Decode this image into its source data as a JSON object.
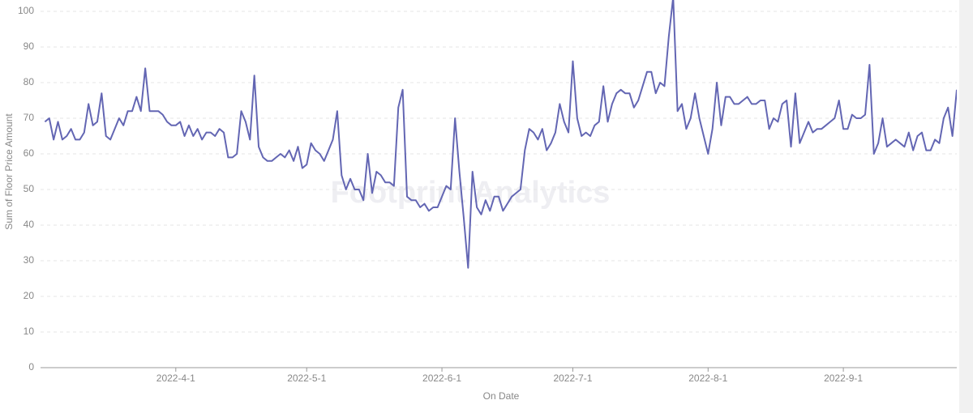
{
  "chart_data": {
    "type": "line",
    "watermark": "Footprint Analytics",
    "x_label": "On Date",
    "y_label": "Sum of Floor Price Amount",
    "x": [
      "2022-03-02",
      "2022-03-03",
      "2022-03-04",
      "2022-03-05",
      "2022-03-06",
      "2022-03-07",
      "2022-03-08",
      "2022-03-09",
      "2022-03-10",
      "2022-03-11",
      "2022-03-12",
      "2022-03-13",
      "2022-03-14",
      "2022-03-15",
      "2022-03-16",
      "2022-03-17",
      "2022-03-18",
      "2022-03-19",
      "2022-03-20",
      "2022-03-21",
      "2022-03-22",
      "2022-03-23",
      "2022-03-24",
      "2022-03-25",
      "2022-03-26",
      "2022-03-27",
      "2022-03-28",
      "2022-03-29",
      "2022-03-30",
      "2022-03-31",
      "2022-04-01",
      "2022-04-02",
      "2022-04-03",
      "2022-04-04",
      "2022-04-05",
      "2022-04-06",
      "2022-04-07",
      "2022-04-08",
      "2022-04-09",
      "2022-04-10",
      "2022-04-11",
      "2022-04-12",
      "2022-04-13",
      "2022-04-14",
      "2022-04-15",
      "2022-04-16",
      "2022-04-17",
      "2022-04-18",
      "2022-04-19",
      "2022-04-20",
      "2022-04-21",
      "2022-04-22",
      "2022-04-23",
      "2022-04-24",
      "2022-04-25",
      "2022-04-26",
      "2022-04-27",
      "2022-04-28",
      "2022-04-29",
      "2022-04-30",
      "2022-05-01",
      "2022-05-02",
      "2022-05-03",
      "2022-05-04",
      "2022-05-05",
      "2022-05-06",
      "2022-05-07",
      "2022-05-08",
      "2022-05-09",
      "2022-05-10",
      "2022-05-11",
      "2022-05-12",
      "2022-05-13",
      "2022-05-14",
      "2022-05-15",
      "2022-05-16",
      "2022-05-17",
      "2022-05-18",
      "2022-05-19",
      "2022-05-20",
      "2022-05-21",
      "2022-05-22",
      "2022-05-23",
      "2022-05-24",
      "2022-05-25",
      "2022-05-26",
      "2022-05-27",
      "2022-05-28",
      "2022-05-29",
      "2022-05-30",
      "2022-05-31",
      "2022-06-01",
      "2022-06-02",
      "2022-06-03",
      "2022-06-04",
      "2022-06-05",
      "2022-06-06",
      "2022-06-07",
      "2022-06-08",
      "2022-06-09",
      "2022-06-10",
      "2022-06-11",
      "2022-06-12",
      "2022-06-13",
      "2022-06-14",
      "2022-06-15",
      "2022-06-16",
      "2022-06-17",
      "2022-06-18",
      "2022-06-19",
      "2022-06-20",
      "2022-06-21",
      "2022-06-22",
      "2022-06-23",
      "2022-06-24",
      "2022-06-25",
      "2022-06-26",
      "2022-06-27",
      "2022-06-28",
      "2022-06-29",
      "2022-06-30",
      "2022-07-01",
      "2022-07-02",
      "2022-07-03",
      "2022-07-04",
      "2022-07-05",
      "2022-07-06",
      "2022-07-07",
      "2022-07-08",
      "2022-07-09",
      "2022-07-10",
      "2022-07-11",
      "2022-07-12",
      "2022-07-13",
      "2022-07-14",
      "2022-07-15",
      "2022-07-16",
      "2022-07-17",
      "2022-07-18",
      "2022-07-19",
      "2022-07-20",
      "2022-07-21",
      "2022-07-22",
      "2022-07-23",
      "2022-07-24",
      "2022-07-25",
      "2022-07-26",
      "2022-07-27",
      "2022-07-28",
      "2022-07-29",
      "2022-07-30",
      "2022-07-31",
      "2022-08-01",
      "2022-08-02",
      "2022-08-03",
      "2022-08-04",
      "2022-08-05",
      "2022-08-06",
      "2022-08-07",
      "2022-08-08",
      "2022-08-09",
      "2022-08-10",
      "2022-08-11",
      "2022-08-12",
      "2022-08-13",
      "2022-08-14",
      "2022-08-15",
      "2022-08-16",
      "2022-08-17",
      "2022-08-18",
      "2022-08-19",
      "2022-08-20",
      "2022-08-21",
      "2022-08-22",
      "2022-08-23",
      "2022-08-24",
      "2022-08-25",
      "2022-08-26",
      "2022-08-27",
      "2022-08-28",
      "2022-08-29",
      "2022-08-30",
      "2022-08-31",
      "2022-09-01",
      "2022-09-02",
      "2022-09-03",
      "2022-09-04",
      "2022-09-05",
      "2022-09-06",
      "2022-09-07",
      "2022-09-08",
      "2022-09-09",
      "2022-09-10",
      "2022-09-11",
      "2022-09-12",
      "2022-09-13",
      "2022-09-14",
      "2022-09-15",
      "2022-09-16",
      "2022-09-17",
      "2022-09-18",
      "2022-09-19",
      "2022-09-20",
      "2022-09-21",
      "2022-09-22",
      "2022-09-23",
      "2022-09-24",
      "2022-09-25",
      "2022-09-26",
      "2022-09-27"
    ],
    "series": [
      {
        "color": "#6366b3",
        "values": [
          69,
          70,
          64,
          69,
          64,
          65,
          67,
          64,
          64,
          66,
          74,
          68,
          69,
          77,
          65,
          64,
          67,
          70,
          68,
          72,
          72,
          76,
          72,
          84,
          72,
          72,
          72,
          71,
          69,
          68,
          68,
          69,
          65,
          68,
          65,
          67,
          64,
          66,
          66,
          65,
          67,
          66,
          59,
          59,
          60,
          72,
          69,
          64,
          82,
          62,
          59,
          58,
          58,
          59,
          60,
          59,
          61,
          58,
          62,
          56,
          57,
          63,
          61,
          60,
          58,
          61,
          64,
          72,
          54,
          50,
          53,
          50,
          50,
          47,
          60,
          49,
          55,
          54,
          52,
          52,
          51,
          73,
          78,
          48,
          47,
          47,
          45,
          46,
          44,
          45,
          45,
          48,
          51,
          50,
          70,
          55,
          42,
          28,
          55,
          45,
          43,
          47,
          44,
          48,
          48,
          44,
          46,
          48,
          49,
          50,
          61,
          67,
          66,
          64,
          67,
          61,
          63,
          66,
          74,
          69,
          66,
          86,
          70,
          65,
          66,
          65,
          68,
          69,
          79,
          69,
          74,
          77,
          78,
          77,
          77,
          73,
          75,
          79,
          83,
          83,
          77,
          80,
          79,
          93,
          104,
          72,
          74,
          67,
          70,
          77,
          70,
          65,
          60,
          67,
          80,
          68,
          76,
          76,
          74,
          74,
          75,
          76,
          74,
          74,
          75,
          75,
          67,
          70,
          69,
          74,
          75,
          62,
          77,
          63,
          66,
          69,
          66,
          67,
          67,
          68,
          69,
          70,
          75,
          67,
          67,
          71,
          70,
          70,
          71,
          85,
          60,
          63,
          70,
          62,
          63,
          64,
          63,
          62,
          66,
          61,
          65,
          66,
          61,
          61,
          64,
          63,
          70,
          73,
          65,
          78
        ]
      }
    ],
    "xlim": [
      "2022-03-01",
      "2022-09-27"
    ],
    "xticks": [
      {
        "value": "2022-04-01",
        "label": "2022-4-1"
      },
      {
        "value": "2022-05-01",
        "label": "2022-5-1"
      },
      {
        "value": "2022-06-01",
        "label": "2022-6-1"
      },
      {
        "value": "2022-07-01",
        "label": "2022-7-1"
      },
      {
        "value": "2022-08-01",
        "label": "2022-8-1"
      },
      {
        "value": "2022-09-01",
        "label": "2022-9-1"
      }
    ],
    "ylim": [
      0,
      100
    ],
    "yticks": [
      0,
      10,
      20,
      30,
      40,
      50,
      60,
      70,
      80,
      90,
      100
    ],
    "grid": true
  }
}
